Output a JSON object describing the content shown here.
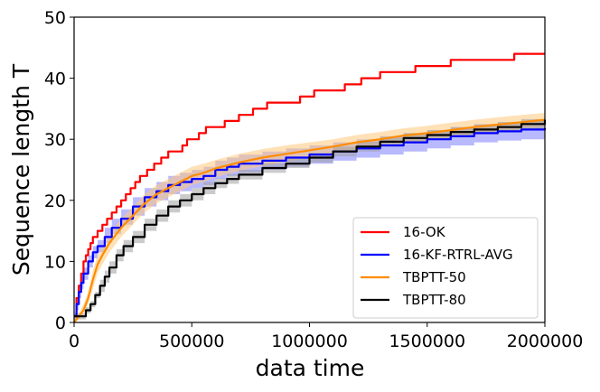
{
  "chart_data": {
    "type": "line",
    "title": "",
    "xlabel": "data time",
    "ylabel": "Sequence length T",
    "xlim": [
      0,
      2000000
    ],
    "ylim": [
      0,
      50
    ],
    "xticks": [
      0,
      500000,
      1000000,
      1500000,
      2000000
    ],
    "xtick_labels": [
      "0",
      "500000",
      "1000000",
      "1500000",
      "2000000"
    ],
    "yticks": [
      0,
      10,
      20,
      30,
      40,
      50
    ],
    "ytick_labels": [
      "0",
      "10",
      "20",
      "30",
      "40",
      "50"
    ],
    "legend_position": "lower-right",
    "series": [
      {
        "name": "16-OK",
        "color": "#ff0000",
        "step": true,
        "x": [
          0,
          10000,
          20000,
          30000,
          40000,
          50000,
          60000,
          70000,
          80000,
          100000,
          120000,
          140000,
          160000,
          180000,
          200000,
          220000,
          240000,
          260000,
          280000,
          310000,
          340000,
          370000,
          400000,
          430000,
          460000,
          480000,
          500000,
          530000,
          560000,
          600000,
          640000,
          700000,
          760000,
          820000,
          900000,
          960000,
          1020000,
          1080000,
          1150000,
          1220000,
          1300000,
          1370000,
          1450000,
          1530000,
          1600000,
          1680000,
          1770000,
          1870000,
          1950000,
          2000000
        ],
        "y": [
          1,
          4,
          6,
          8,
          10,
          11,
          12,
          13,
          14,
          15,
          16,
          17,
          18,
          19,
          20,
          21,
          22,
          23,
          24,
          25,
          26,
          27,
          28,
          28,
          29,
          30,
          30,
          31,
          32,
          32,
          33,
          34,
          35,
          36,
          36,
          37,
          38,
          38,
          39,
          40,
          41,
          41,
          42,
          42,
          43,
          43,
          43,
          44,
          44,
          44
        ]
      },
      {
        "name": "16-KF-RTRL-AVG",
        "color": "#0000ff",
        "band_color": "#8080ff",
        "step": true,
        "x": [
          0,
          10000,
          20000,
          30000,
          40000,
          60000,
          80000,
          100000,
          130000,
          160000,
          200000,
          250000,
          300000,
          350000,
          400000,
          450000,
          500000,
          550000,
          600000,
          650000,
          700000,
          800000,
          900000,
          1000000,
          1100000,
          1200000,
          1300000,
          1400000,
          1500000,
          1600000,
          1700000,
          1800000,
          1900000,
          2000000
        ],
        "y": [
          1,
          3,
          5,
          6.5,
          8,
          10,
          11.5,
          12.5,
          14,
          15.5,
          17,
          19,
          20.5,
          21.5,
          22.5,
          23,
          23.5,
          24,
          25,
          25.5,
          26,
          26.5,
          27,
          27.5,
          28,
          28.5,
          29,
          29.5,
          30,
          30.5,
          31,
          31.3,
          31.6,
          31.8
        ],
        "lower": [
          1,
          2,
          4,
          5.5,
          7,
          9,
          10.5,
          11.5,
          13,
          14.5,
          16,
          17.5,
          19,
          20,
          21,
          21.5,
          22,
          22.5,
          23.5,
          24,
          24.5,
          25,
          25.5,
          26,
          26.5,
          27,
          27.5,
          28,
          28.5,
          29,
          29.5,
          29.8,
          30,
          30
        ],
        "upper": [
          1.5,
          4,
          6,
          7.5,
          9,
          11,
          12.5,
          13.5,
          15.5,
          17,
          18.5,
          20.5,
          22,
          23,
          24,
          24.5,
          25,
          25.5,
          26.5,
          27,
          27.5,
          28,
          28.5,
          29,
          29.5,
          30,
          30.5,
          31,
          31.5,
          32,
          32.5,
          32.8,
          33,
          33.2
        ]
      },
      {
        "name": "TBPTT-50",
        "color": "#ff8c00",
        "band_color": "#ffc87c",
        "step": false,
        "x": [
          0,
          20000,
          40000,
          60000,
          80000,
          100000,
          120000,
          150000,
          200000,
          250000,
          300000,
          350000,
          400000,
          450000,
          500000,
          550000,
          600000,
          700000,
          800000,
          900000,
          1000000,
          1100000,
          1200000,
          1300000,
          1400000,
          1500000,
          1600000,
          1700000,
          1800000,
          1900000,
          2000000
        ],
        "y": [
          0,
          1,
          2,
          4,
          7,
          9.5,
          11,
          13,
          15.5,
          17.5,
          19.5,
          21,
          22,
          23,
          24,
          24.5,
          25.2,
          26.2,
          27,
          27.6,
          28.2,
          28.8,
          29.5,
          30,
          30.6,
          31,
          31.5,
          32,
          32.4,
          32.8,
          33.2
        ],
        "lower": [
          0,
          0.5,
          1.5,
          3,
          5.5,
          8,
          9.5,
          11.5,
          14,
          16,
          18,
          19.5,
          20.5,
          21.5,
          22.5,
          23,
          23.8,
          24.8,
          25.6,
          26.3,
          27,
          27.6,
          28.3,
          28.8,
          29.4,
          29.8,
          30.3,
          30.8,
          31.2,
          31.6,
          32
        ],
        "upper": [
          0.5,
          1.5,
          3,
          5,
          8.5,
          11,
          12.5,
          14.5,
          17,
          19,
          21,
          22.5,
          23.5,
          24.5,
          25.5,
          26,
          26.6,
          27.6,
          28.4,
          29,
          29.5,
          30,
          30.7,
          31.2,
          31.8,
          32.2,
          32.7,
          33.2,
          33.6,
          34,
          34.3
        ]
      },
      {
        "name": "TBPTT-80",
        "color": "#000000",
        "band_color": "#a0a0a0",
        "step": true,
        "x": [
          0,
          30000,
          50000,
          70000,
          90000,
          110000,
          130000,
          150000,
          180000,
          210000,
          250000,
          300000,
          350000,
          400000,
          450000,
          500000,
          550000,
          600000,
          650000,
          700000,
          800000,
          900000,
          1000000,
          1100000,
          1200000,
          1300000,
          1400000,
          1500000,
          1600000,
          1700000,
          1800000,
          1900000,
          2000000
        ],
        "y": [
          1,
          1,
          2,
          3,
          4.5,
          6,
          7.5,
          9,
          11,
          12.5,
          14,
          16,
          17.5,
          19,
          20,
          21,
          22,
          22.8,
          23.5,
          24.2,
          25.3,
          26,
          27,
          28,
          28.8,
          29.6,
          30.2,
          30.7,
          31.2,
          31.6,
          32,
          32.5,
          33.2
        ],
        "lower": [
          0.5,
          0.5,
          1.5,
          2.5,
          4,
          5,
          6.5,
          8,
          10,
          11.5,
          13,
          15,
          16.5,
          18,
          19,
          20,
          21,
          22,
          22.7,
          23.4,
          24.5,
          25.3,
          26.2,
          27.2,
          28,
          28.8,
          29.4,
          29.9,
          30.4,
          30.8,
          31.2,
          31.7,
          32.3
        ],
        "upper": [
          1.5,
          1.5,
          2.5,
          3.5,
          5,
          7,
          8.5,
          10,
          12,
          13.5,
          15,
          17,
          18.5,
          20,
          21,
          22,
          23,
          23.6,
          24.3,
          25,
          26.1,
          26.8,
          27.8,
          28.8,
          29.6,
          30.4,
          31,
          31.5,
          32,
          32.4,
          32.8,
          33.3,
          34
        ]
      }
    ]
  }
}
